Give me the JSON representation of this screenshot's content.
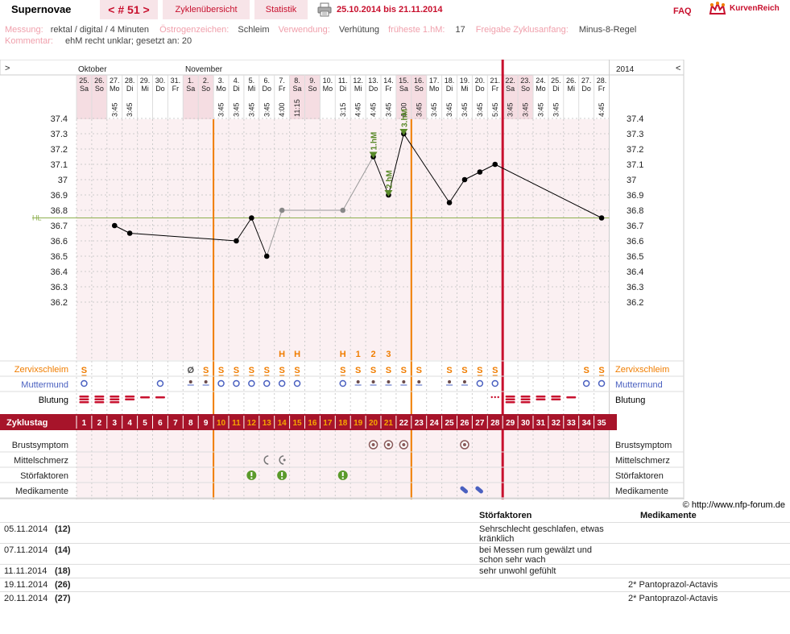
{
  "header": {
    "title": "Supernovae",
    "cycle_nav": "< # 51 >",
    "tab_overview": "Zyklenübersicht",
    "tab_stats": "Statistik",
    "date_range": "25.10.2014 bis 21.11.2014",
    "faq": "FAQ",
    "brand": "KurvenReich",
    "print_icon": "printer-icon",
    "brand_icon": "crown-icon"
  },
  "meta": {
    "messung_label": "Messung:",
    "messung_value": "rektal / digital / 4 Minuten",
    "oestrogen_label": "Östrogenzeichen:",
    "oestrogen_value": "Schleim",
    "verwendung_label": "Verwendung:",
    "verwendung_value": "Verhütung",
    "frueheste_label": "früheste 1.hM:",
    "frueheste_value": "17",
    "freigabe_label": "Freigabe Zyklusanfang:",
    "freigabe_value": "Minus-8-Regel",
    "kommentar_label": "Kommentar:",
    "kommentar_value": "ehM recht unklar; gesetzt an: 20"
  },
  "chart_data": {
    "type": "line",
    "nav_left": ">",
    "nav_right": "<",
    "year": "2014",
    "months": [
      "Oktober",
      "November"
    ],
    "day_numbers": [
      "25.",
      "26.",
      "27.",
      "28.",
      "29.",
      "30.",
      "31.",
      "1.",
      "2.",
      "3.",
      "4.",
      "5.",
      "6.",
      "7.",
      "8.",
      "9.",
      "10.",
      "11.",
      "12.",
      "13.",
      "14.",
      "15.",
      "16.",
      "17.",
      "18.",
      "19.",
      "20.",
      "21.",
      "22.",
      "23.",
      "24.",
      "25.",
      "26.",
      "27.",
      "28."
    ],
    "weekdays": [
      "Sa",
      "So",
      "Mo",
      "Di",
      "Mi",
      "Do",
      "Fr",
      "Sa",
      "So",
      "Mo",
      "Di",
      "Mi",
      "Do",
      "Fr",
      "Sa",
      "So",
      "Mo",
      "Di",
      "Mi",
      "Do",
      "Fr",
      "Sa",
      "So",
      "Mo",
      "Di",
      "Mi",
      "Do",
      "Fr",
      "Sa",
      "So",
      "Mo",
      "Di",
      "Mi",
      "Do",
      "Fr"
    ],
    "times": [
      "",
      "",
      "3:45",
      "3:45",
      "",
      "",
      "",
      "",
      "",
      "3:45",
      "3:45",
      "3:45",
      "3:45",
      "4:00",
      "11:15",
      "",
      "",
      "3:15",
      "4:45",
      "4:45",
      "3:45",
      "6:00",
      "3:45",
      "3:45",
      "3:45",
      "3:45",
      "3:45",
      "5:45",
      "3:45",
      "3:45",
      "3:45",
      "3:45",
      "",
      "",
      "4:45"
    ],
    "cycle_days": [
      1,
      2,
      3,
      4,
      5,
      6,
      7,
      8,
      9,
      10,
      11,
      12,
      13,
      14,
      15,
      16,
      17,
      18,
      19,
      20,
      21,
      22,
      23,
      24,
      25,
      26,
      27,
      28,
      29,
      30,
      31,
      32,
      33,
      34,
      35
    ],
    "cycle_day_label": "Zyklustag",
    "ylim": [
      36.1,
      37.5
    ],
    "yticks": [
      "37.4",
      "37.3",
      "37.2",
      "37.1",
      "37",
      "36.9",
      "36.8",
      "36.7",
      "36.6",
      "36.5",
      "36.4",
      "36.3",
      "36.2"
    ],
    "ytick_values": [
      37.4,
      37.3,
      37.2,
      37.1,
      37.0,
      36.9,
      36.8,
      36.7,
      36.6,
      36.5,
      36.4,
      36.3,
      36.2
    ],
    "hl_label": "HL",
    "hl_value": 36.75,
    "temperature_series": [
      {
        "day": 3,
        "temp": 36.7
      },
      {
        "day": 4,
        "temp": 36.65
      },
      {
        "day": 11,
        "temp": 36.6
      },
      {
        "day": 12,
        "temp": 36.75
      },
      {
        "day": 13,
        "temp": 36.5
      },
      {
        "day": 14,
        "temp": 36.8,
        "excluded": true
      },
      {
        "day": 18,
        "temp": 36.8,
        "excluded": true
      },
      {
        "day": 20,
        "temp": 37.15,
        "marker": "1.hM"
      },
      {
        "day": 21,
        "temp": 36.9,
        "marker": "2.hM"
      },
      {
        "day": 22,
        "temp": 37.3,
        "marker": "3.hM"
      },
      {
        "day": 25,
        "temp": 36.85
      },
      {
        "day": 26,
        "temp": 37.0
      },
      {
        "day": 27,
        "temp": 37.05
      },
      {
        "day": 28,
        "temp": 37.1
      },
      {
        "day": 35,
        "temp": 36.75
      }
    ],
    "peak_markers": [
      {
        "day": 14,
        "label": "H"
      },
      {
        "day": 15,
        "label": "H"
      },
      {
        "day": 18,
        "label": "H"
      },
      {
        "day": 19,
        "label": "1"
      },
      {
        "day": 20,
        "label": "2"
      },
      {
        "day": 21,
        "label": "3"
      }
    ],
    "row_labels": {
      "zervix": "Zervixschleim",
      "muttermund": "Muttermund",
      "blutung": "Blutung",
      "brust": "Brustsymptom",
      "mittelschmerz": "Mittelschmerz",
      "stoer": "Störfaktoren",
      "medikamente": "Medikamente"
    },
    "zervix": [
      {
        "day": 1,
        "v": "S"
      },
      {
        "day": 8,
        "v": "Ø"
      },
      {
        "day": 9,
        "v": "S"
      },
      {
        "day": 10,
        "v": "S"
      },
      {
        "day": 11,
        "v": "S"
      },
      {
        "day": 12,
        "v": "S"
      },
      {
        "day": 13,
        "v": "S"
      },
      {
        "day": 14,
        "v": "S"
      },
      {
        "day": 15,
        "v": "S"
      },
      {
        "day": 18,
        "v": "S"
      },
      {
        "day": 19,
        "v": "S"
      },
      {
        "day": 20,
        "v": "S"
      },
      {
        "day": 21,
        "v": "S"
      },
      {
        "day": 22,
        "v": "S"
      },
      {
        "day": 23,
        "v": "S"
      },
      {
        "day": 25,
        "v": "S"
      },
      {
        "day": 26,
        "v": "S"
      },
      {
        "day": 27,
        "v": "S"
      },
      {
        "day": 28,
        "v": "S"
      },
      {
        "day": 34,
        "v": "S"
      },
      {
        "day": 35,
        "v": "S"
      }
    ],
    "zervix_underlined": [
      1,
      9,
      10,
      11,
      12,
      13,
      14,
      15,
      18,
      27,
      28,
      35
    ],
    "muttermund_open": [
      1,
      6,
      10,
      11,
      12,
      13,
      14,
      15,
      18,
      27,
      28,
      34,
      35
    ],
    "muttermund_closed": [
      8,
      9,
      19,
      20,
      21,
      22,
      23,
      25,
      26
    ],
    "blutung_heavy": [
      1,
      2,
      3,
      29,
      30
    ],
    "blutung_medium": [
      4,
      31,
      32
    ],
    "blutung_light": [
      5,
      6,
      33
    ],
    "blutung_spotting": [
      28
    ],
    "brust": [
      20,
      21,
      22,
      26
    ],
    "mittelschmerz": [
      13,
      14
    ],
    "stoer": [
      12,
      14,
      18
    ],
    "medikamente": [
      26,
      27
    ],
    "orange_lines": [
      9,
      22
    ],
    "red_line": 28,
    "colors": {
      "accent": "#c8102e",
      "orange": "#f07d00",
      "green": "#5a8a2a",
      "blue": "#4a60c0",
      "hl": "#8fb050"
    }
  },
  "notes": {
    "copyright": "© http://www.nfp-forum.de",
    "col_stoer": "Störfaktoren",
    "col_med": "Medikamente",
    "rows": [
      {
        "date": "05.11.2014",
        "cd": "(12)",
        "stoer": "Sehrschlecht geschlafen, etwas kränklich",
        "med": ""
      },
      {
        "date": "07.11.2014",
        "cd": "(14)",
        "stoer": "bei Messen rum gewälzt und schon sehr wach",
        "med": ""
      },
      {
        "date": "11.11.2014",
        "cd": "(18)",
        "stoer": "sehr unwohl gefühlt",
        "med": ""
      },
      {
        "date": "19.11.2014",
        "cd": "(26)",
        "stoer": "",
        "med": "2* Pantoprazol-Actavis"
      },
      {
        "date": "20.11.2014",
        "cd": "(27)",
        "stoer": "",
        "med": "2* Pantoprazol-Actavis"
      }
    ]
  }
}
